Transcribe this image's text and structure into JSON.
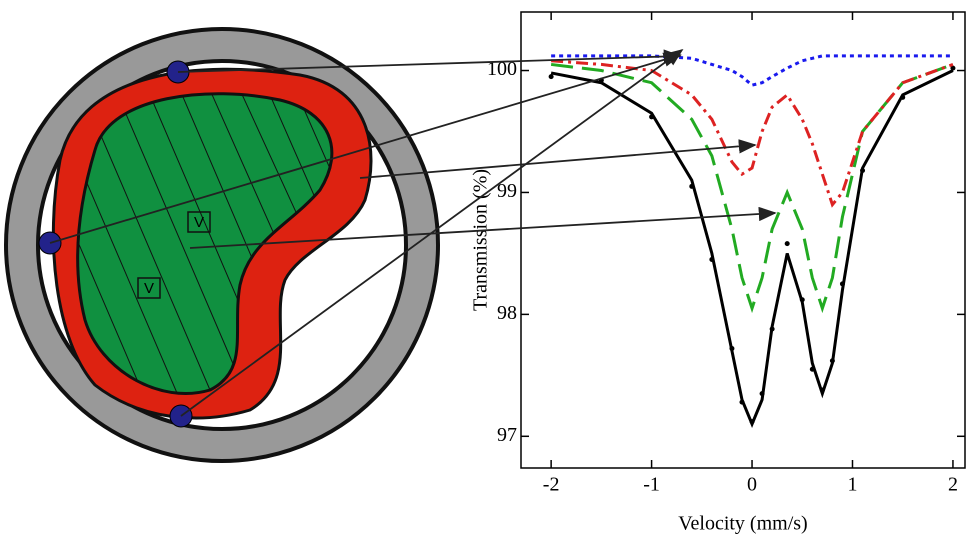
{
  "diagram": {
    "labels": [
      "V",
      "V"
    ]
  },
  "chart_data": {
    "type": "line",
    "xlabel": "Velocity (mm/s)",
    "ylabel": "Transmission (%)",
    "xlim": [
      -2.3,
      2.12
    ],
    "ylim": [
      96.74,
      100.48
    ],
    "xticks": [
      -2,
      -1,
      0,
      1,
      2
    ],
    "yticks": [
      97,
      98,
      99,
      100
    ],
    "x": [
      -2,
      -1.5,
      -1,
      -0.6,
      -0.4,
      -0.2,
      -0.1,
      0,
      0.1,
      0.2,
      0.35,
      0.5,
      0.6,
      0.7,
      0.8,
      0.9,
      1.1,
      1.5,
      2
    ],
    "series": [
      {
        "style": "dots",
        "color": "#000000",
        "values": [
          99.95,
          99.92,
          99.62,
          99.05,
          98.45,
          97.72,
          97.28,
          97.12,
          97.35,
          97.88,
          98.58,
          98.12,
          97.55,
          97.38,
          97.62,
          98.25,
          99.18,
          99.78,
          100.02
        ]
      },
      {
        "style": "solid",
        "color": "#000000",
        "values": [
          99.98,
          99.9,
          99.65,
          99.1,
          98.5,
          97.7,
          97.3,
          97.1,
          97.3,
          97.9,
          98.5,
          98.1,
          97.6,
          97.35,
          97.6,
          98.2,
          99.2,
          99.8,
          100.0
        ]
      },
      {
        "style": "dashed",
        "color": "#22aa22",
        "values": [
          100.05,
          100.0,
          99.9,
          99.6,
          99.3,
          98.7,
          98.3,
          98.05,
          98.3,
          98.7,
          99.0,
          98.7,
          98.3,
          98.05,
          98.3,
          98.8,
          99.5,
          99.9,
          100.05
        ]
      },
      {
        "style": "dashdot",
        "color": "#dd2222",
        "values": [
          100.08,
          100.05,
          100.0,
          99.8,
          99.6,
          99.25,
          99.15,
          99.2,
          99.5,
          99.7,
          99.8,
          99.6,
          99.4,
          99.15,
          98.9,
          99.0,
          99.5,
          99.9,
          100.05
        ]
      },
      {
        "style": "dotted",
        "color": "#1a1aee",
        "values": [
          100.12,
          100.12,
          100.12,
          100.1,
          100.05,
          100.0,
          99.95,
          99.88,
          99.9,
          99.95,
          100.02,
          100.08,
          100.1,
          100.12,
          100.12,
          100.12,
          100.12,
          100.12,
          100.12
        ]
      }
    ]
  }
}
